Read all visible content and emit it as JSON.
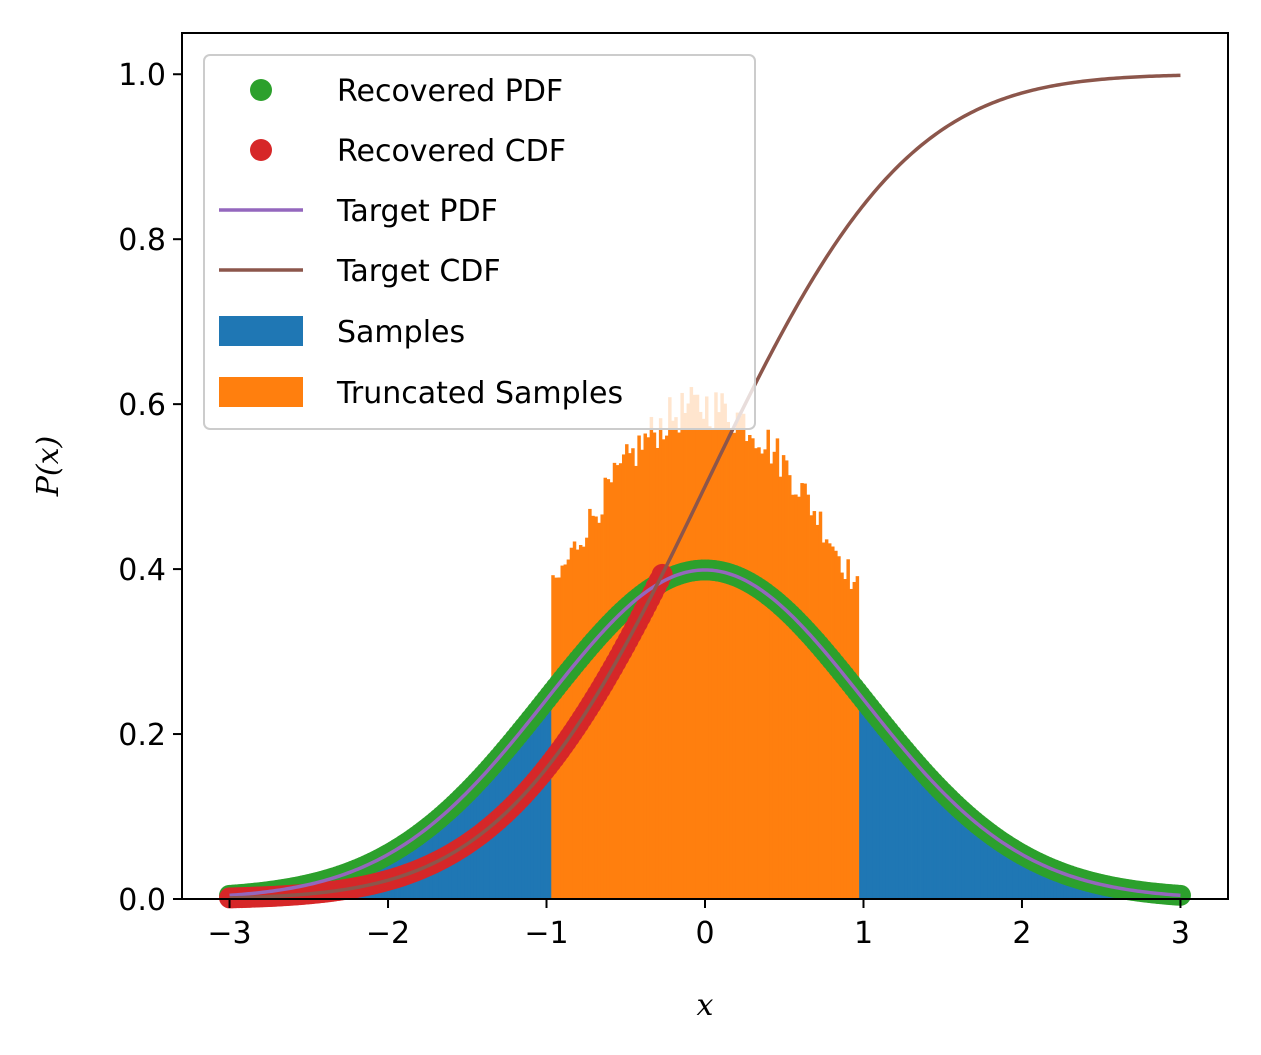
{
  "chart_data": {
    "type": "line",
    "xlabel": "x",
    "ylabel": "P(x)",
    "xlim": [
      -3.3,
      3.3
    ],
    "ylim": [
      0.0,
      1.05
    ],
    "grid": false,
    "legend_position": "top-left",
    "x_ticks": [
      {
        "value": -3,
        "label": "−3"
      },
      {
        "value": -2,
        "label": "−2"
      },
      {
        "value": -1,
        "label": "−1"
      },
      {
        "value": 0,
        "label": "0"
      },
      {
        "value": 1,
        "label": "1"
      },
      {
        "value": 2,
        "label": "2"
      },
      {
        "value": 3,
        "label": "3"
      }
    ],
    "y_ticks": [
      {
        "value": 0.0,
        "label": "0.0"
      },
      {
        "value": 0.2,
        "label": "0.2"
      },
      {
        "value": 0.4,
        "label": "0.4"
      },
      {
        "value": 0.6,
        "label": "0.6"
      },
      {
        "value": 0.8,
        "label": "0.8"
      },
      {
        "value": 1.0,
        "label": "1.0"
      }
    ],
    "legend": [
      {
        "label": "Recovered PDF",
        "marker": "dot",
        "color": "#2ca02c"
      },
      {
        "label": "Recovered CDF",
        "marker": "dot",
        "color": "#d62728"
      },
      {
        "label": "Target PDF",
        "marker": "line",
        "color": "#9467bd"
      },
      {
        "label": "Target CDF",
        "marker": "line",
        "color": "#8c564b"
      },
      {
        "label": "Samples",
        "marker": "patch",
        "color": "#1f77b4"
      },
      {
        "label": "Truncated Samples",
        "marker": "patch",
        "color": "#ff7f0e"
      }
    ],
    "series": [
      {
        "name": "Samples",
        "kind": "histogram",
        "color": "#1f77b4",
        "x_range": [
          -3,
          3
        ],
        "bins": 300,
        "shape": "standard normal density"
      },
      {
        "name": "Truncated Samples",
        "kind": "histogram",
        "color": "#ff7f0e",
        "x_range": [
          -0.97,
          0.97
        ],
        "bins": 100,
        "shape": "truncated normal density",
        "peak": 0.6
      },
      {
        "name": "Recovered PDF",
        "kind": "scatter",
        "color": "#2ca02c",
        "x_range": [
          -3,
          3
        ],
        "shape": "standard normal density",
        "peak": 0.399
      },
      {
        "name": "Recovered CDF",
        "kind": "scatter",
        "color": "#d62728",
        "x_range": [
          -3,
          -0.27
        ],
        "shape": "standard normal cumulative",
        "end_value": 0.394
      },
      {
        "name": "Target PDF",
        "kind": "line",
        "color": "#9467bd",
        "x_range": [
          -3,
          3
        ],
        "shape": "standard normal density",
        "peak": 0.399
      },
      {
        "name": "Target CDF",
        "kind": "line",
        "color": "#8c564b",
        "x_range": [
          -3,
          3
        ],
        "shape": "standard normal cumulative",
        "end_value": 1.0
      }
    ]
  }
}
